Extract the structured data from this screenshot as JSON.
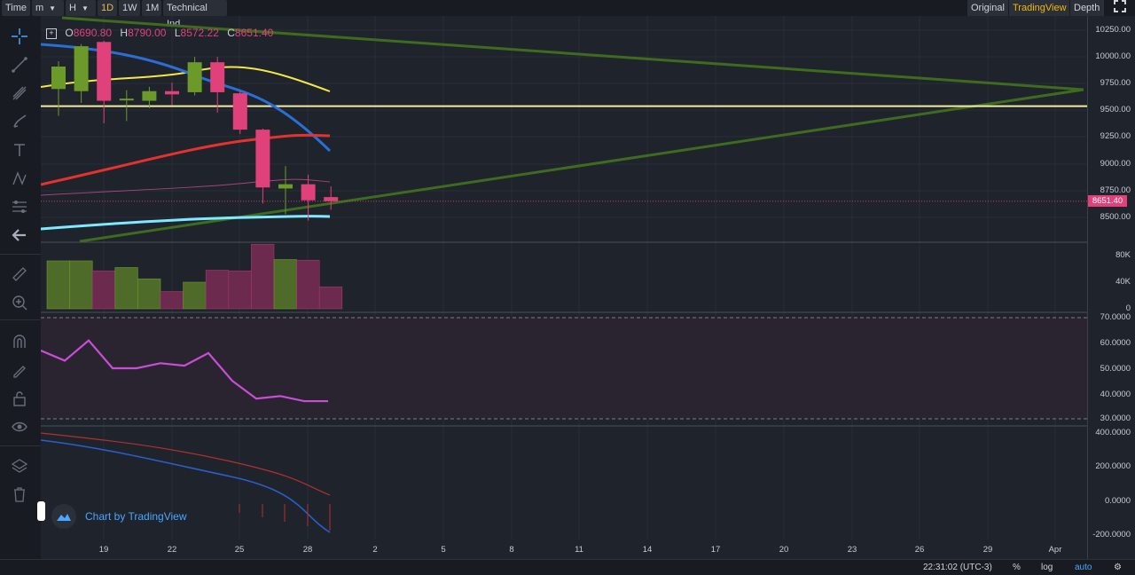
{
  "toolbar": {
    "time": "Time",
    "minute": "m",
    "hour": "H",
    "d1": "1D",
    "w1": "1W",
    "m1": "1M",
    "technical": "Technical Ind",
    "original": "Original",
    "tradingview": "TradingView",
    "depth": "Depth"
  },
  "ohlc": {
    "o_label": "O",
    "o_value": "8690.80",
    "h_label": "H",
    "h_value": "8790.00",
    "l_label": "L",
    "l_value": "8572.22",
    "c_label": "C",
    "c_value": "8651.40"
  },
  "price_axis": [
    "10250.00",
    "10000.00",
    "9750.00",
    "9500.00",
    "9250.00",
    "9000.00",
    "8750.00",
    "8500.00"
  ],
  "last_price_tag": "8651.40",
  "volume_axis": [
    "80K",
    "40K",
    "0"
  ],
  "rsi_axis": [
    "70.0000",
    "60.0000",
    "50.0000",
    "40.0000",
    "30.0000"
  ],
  "macd_axis": [
    "400.0000",
    "200.0000",
    "0.0000",
    "-200.0000"
  ],
  "x_axis": [
    "19",
    "22",
    "25",
    "28",
    "2",
    "5",
    "8",
    "11",
    "14",
    "17",
    "20",
    "23",
    "26",
    "29",
    "Apr"
  ],
  "watermark": "Chart by TradingView",
  "status": {
    "clock": "22:31:02 (UTC-3)",
    "percent": "%",
    "log": "log",
    "auto": "auto"
  },
  "colors": {
    "up": "#6b9a2a",
    "down": "#e0417a",
    "accent": "#f0b90b",
    "link": "#4aa6ff"
  },
  "chart_data": {
    "type": "candlestick",
    "candles": [
      {
        "date": "17",
        "o": 9700,
        "h": 9960,
        "l": 9450,
        "c": 9910
      },
      {
        "date": "18",
        "o": 9680,
        "h": 10120,
        "l": 9570,
        "c": 10100
      },
      {
        "date": "19",
        "o": 10140,
        "h": 10150,
        "l": 9380,
        "c": 9590
      },
      {
        "date": "20",
        "o": 9600,
        "h": 9690,
        "l": 9400,
        "c": 9610
      },
      {
        "date": "21",
        "o": 9590,
        "h": 9720,
        "l": 9520,
        "c": 9680
      },
      {
        "date": "22",
        "o": 9680,
        "h": 9760,
        "l": 9550,
        "c": 9650
      },
      {
        "date": "23",
        "o": 9670,
        "h": 10000,
        "l": 9640,
        "c": 9950
      },
      {
        "date": "24",
        "o": 9950,
        "h": 10000,
        "l": 9480,
        "c": 9670
      },
      {
        "date": "25",
        "o": 9660,
        "h": 9680,
        "l": 9280,
        "c": 9320
      },
      {
        "date": "26",
        "o": 9320,
        "h": 9330,
        "l": 8630,
        "c": 8780
      },
      {
        "date": "27",
        "o": 8770,
        "h": 8980,
        "l": 8530,
        "c": 8810
      },
      {
        "date": "28",
        "o": 8810,
        "h": 8900,
        "l": 8470,
        "c": 8660
      },
      {
        "date": "29",
        "o": 8690,
        "h": 8790,
        "l": 8572,
        "c": 8651
      }
    ],
    "volume": [
      72000,
      72000,
      57000,
      62000,
      45000,
      26000,
      40000,
      58000,
      57000,
      97000,
      74000,
      73000,
      33000
    ],
    "rsi": [
      57,
      53,
      61,
      50,
      50,
      52,
      51,
      56,
      45,
      38,
      39,
      37,
      37
    ],
    "horizontal_line": 9540,
    "ylim": [
      8350,
      10350
    ]
  }
}
